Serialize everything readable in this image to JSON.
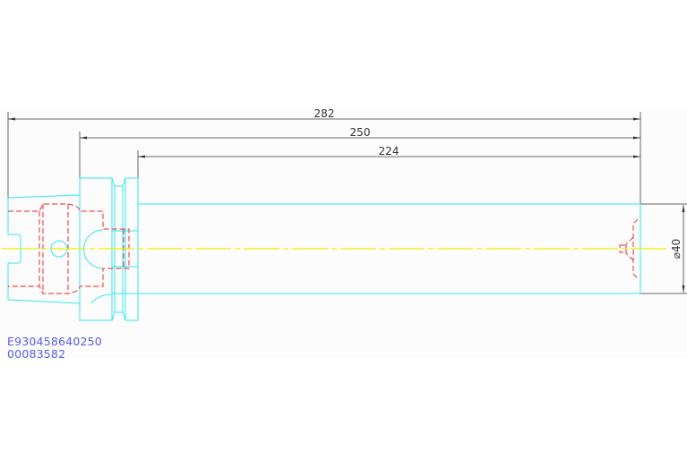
{
  "drawing": {
    "dimensions": {
      "overall_length": "282",
      "gauge_length": "250",
      "shank_length": "224",
      "diameter": "⌀40"
    },
    "part_number": "E930458640250",
    "order_code": "00083582",
    "colors": {
      "outline": "#33e6f0",
      "hidden": "#f05050",
      "centerline": "#f0f000",
      "dimension": "#555555",
      "text": "#5a5af0"
    }
  }
}
